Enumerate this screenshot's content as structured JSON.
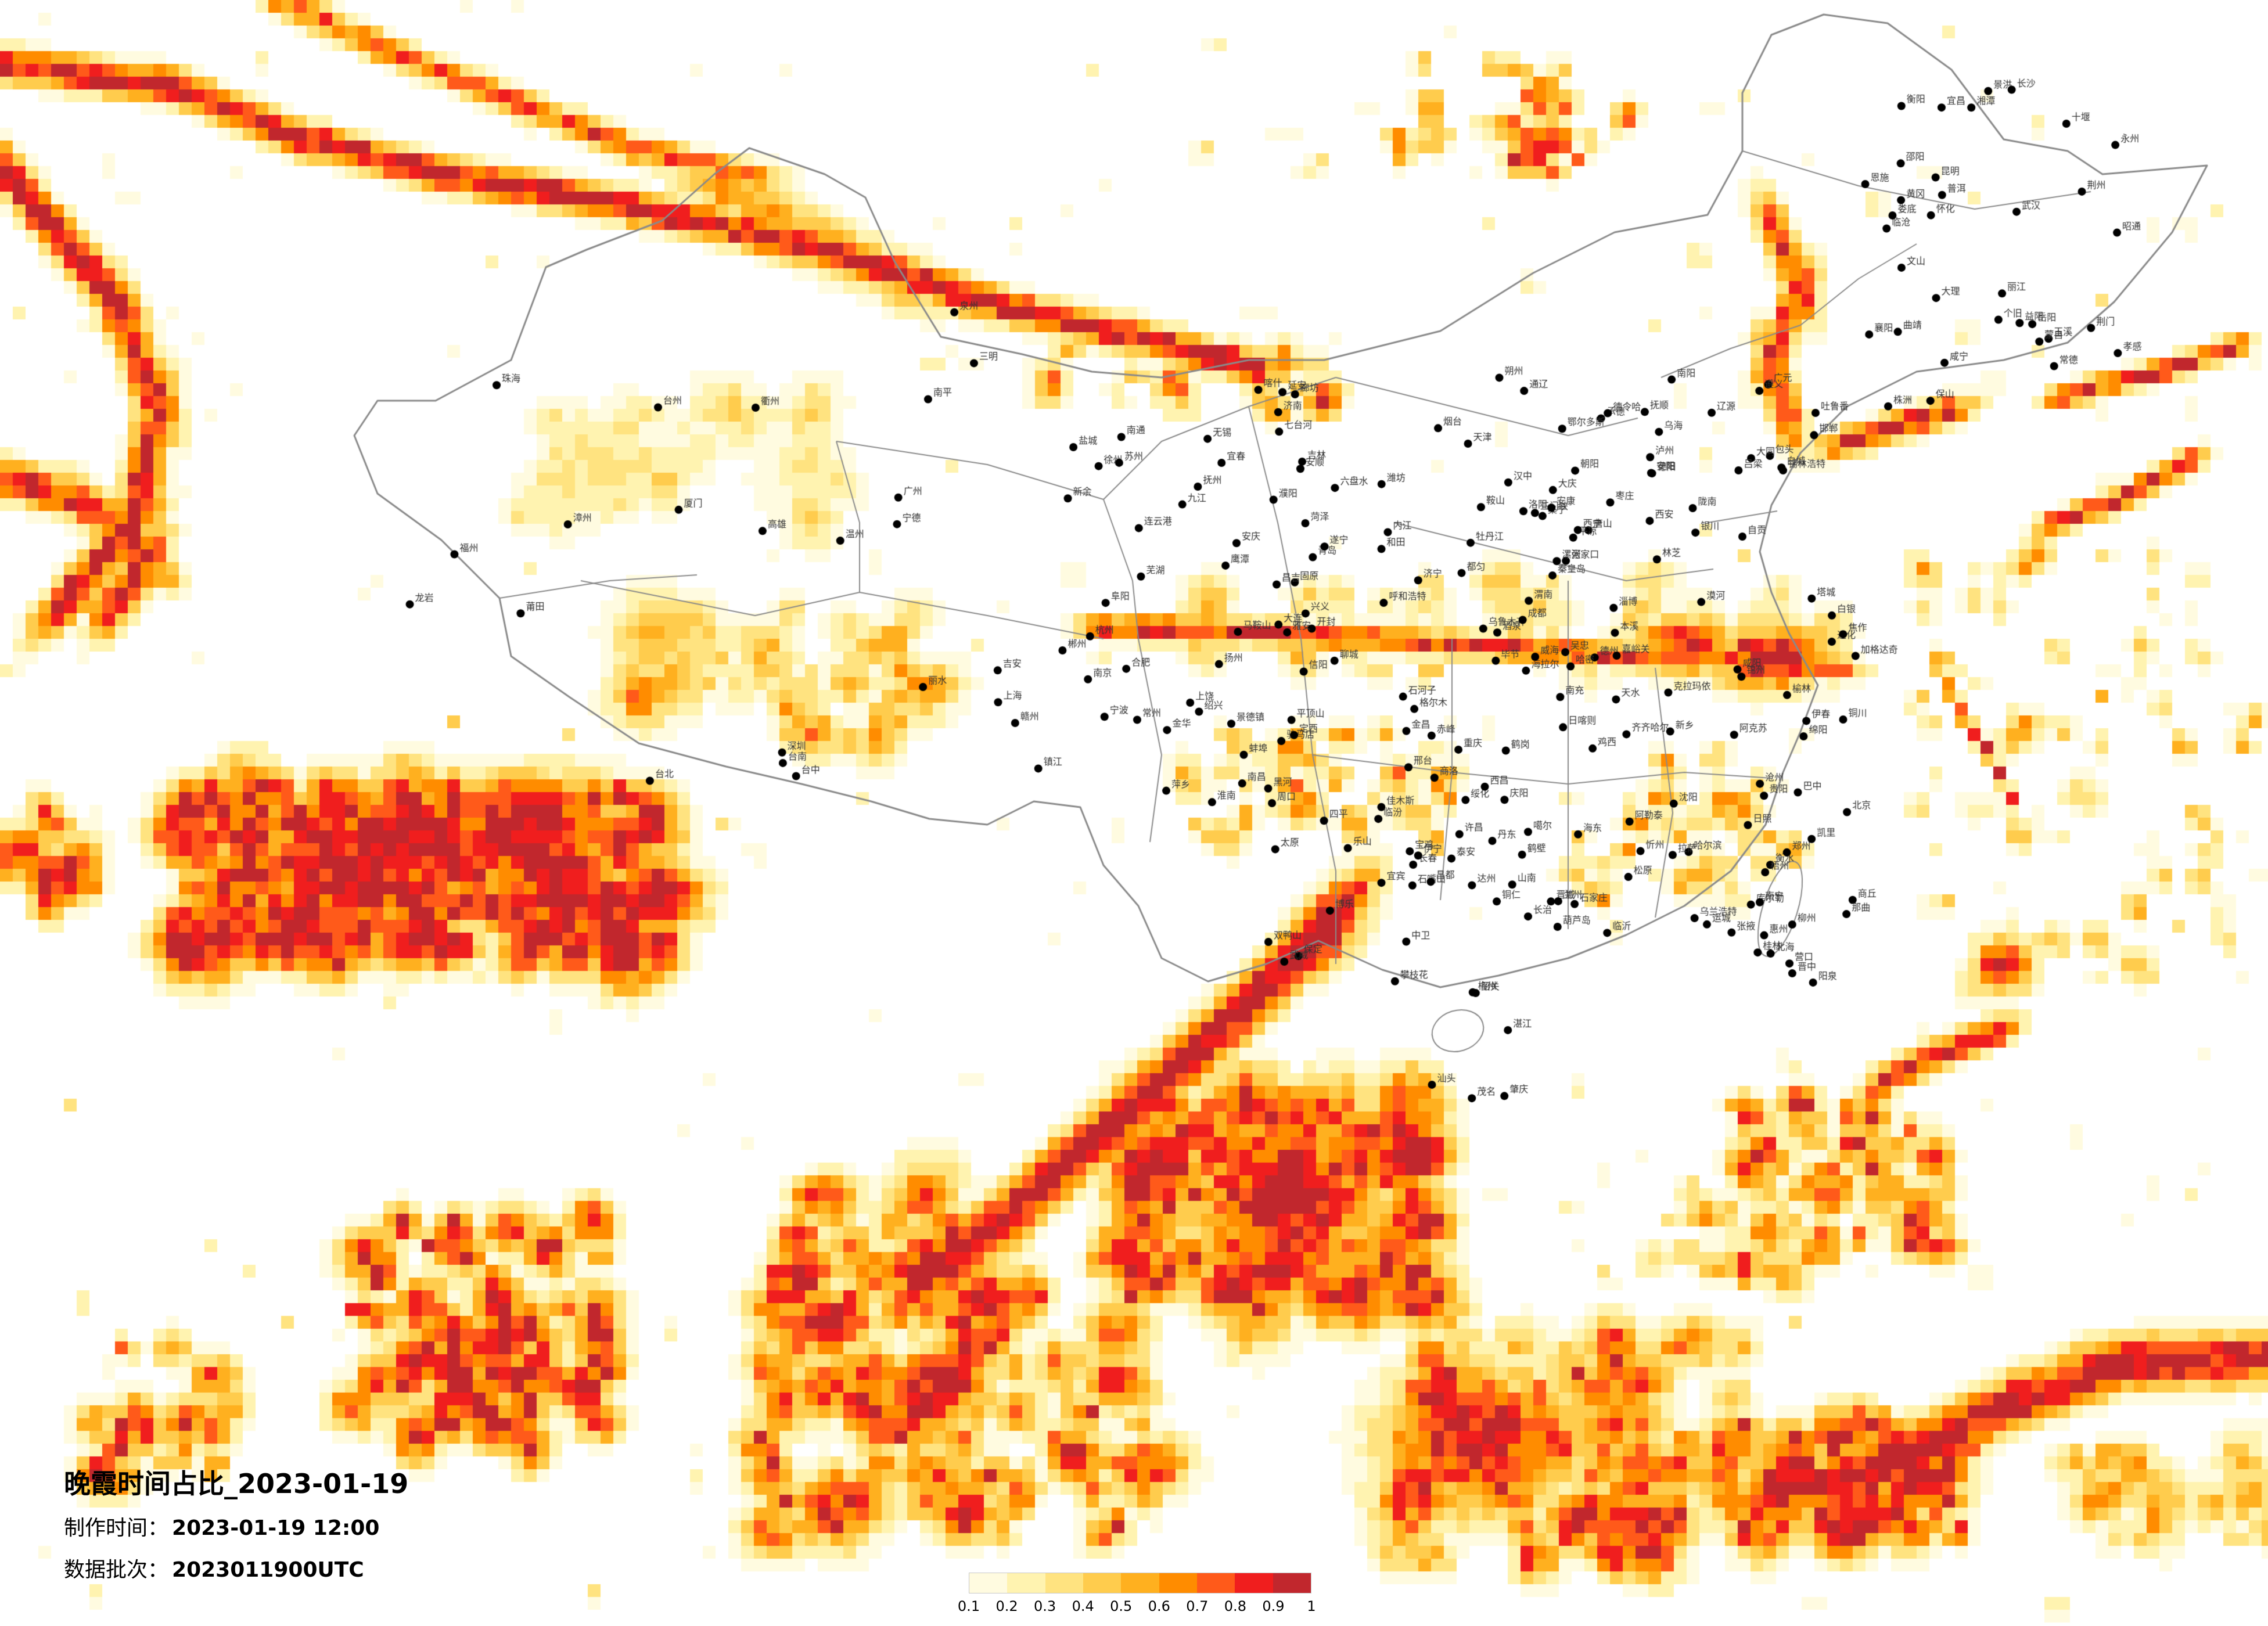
{
  "title": "晚霞时间占比_2023-01-19",
  "meta": {
    "made_label": "制作时间：",
    "made_value": "2023-01-19 12:00",
    "batch_label": "数据批次：",
    "batch_value": "2023011900UTC"
  },
  "legend": {
    "ticks": [
      "0.1",
      "0.2",
      "0.3",
      "0.4",
      "0.5",
      "0.6",
      "0.7",
      "0.8",
      "0.9",
      "1"
    ],
    "colors": [
      "#fffbe0",
      "#fff3b0",
      "#ffe380",
      "#ffcc4d",
      "#ffb01f",
      "#ff8c00",
      "#ff5a1a",
      "#f01e1e",
      "#c1272d"
    ]
  },
  "map": {
    "background": "#ffffff",
    "boundary_color": "#8a8a8a",
    "city_marker_color": "#000000",
    "city_label_color": "#333333"
  },
  "cities": [
    "漠河",
    "加格达奇",
    "黑河",
    "海拉尔",
    "齐齐哈尔",
    "伊春",
    "鹤岗",
    "佳木斯",
    "双鸭山",
    "七台河",
    "绥化",
    "大庆",
    "白城",
    "哈尔滨",
    "鸡西",
    "牡丹江",
    "乌兰浩特",
    "松原",
    "长春",
    "吉林",
    "四平",
    "辽源",
    "通化",
    "锡林浩特",
    "赤峰",
    "通辽",
    "沈阳",
    "抚顺",
    "本溪",
    "丹东",
    "大连",
    "营口",
    "鞍山",
    "锦州",
    "葫芦岛",
    "朝阳",
    "秦皇岛",
    "承德",
    "张家口",
    "北京",
    "天津",
    "唐山",
    "廊坊",
    "保定",
    "石家庄",
    "衡水",
    "沧州",
    "邢台",
    "邯郸",
    "呼和浩特",
    "包头",
    "乌海",
    "鄂尔多斯",
    "集宁",
    "大同",
    "朔州",
    "忻州",
    "太原",
    "阳泉",
    "吕梁",
    "晋中",
    "长治",
    "临汾",
    "运城",
    "晋城",
    "济南",
    "德州",
    "聊城",
    "泰安",
    "淄博",
    "潍坊",
    "烟台",
    "威海",
    "青岛",
    "日照",
    "临沂",
    "济宁",
    "枣庄",
    "菏泽",
    "郑州",
    "开封",
    "商丘",
    "周口",
    "许昌",
    "漯河",
    "平顶山",
    "南阳",
    "信阳",
    "驻马店",
    "洛阳",
    "三门峡",
    "焦作",
    "新乡",
    "安阳",
    "濮阳",
    "鹤壁",
    "西安",
    "宝鸡",
    "咸阳",
    "渭南",
    "铜川",
    "延安",
    "榆林",
    "汉中",
    "安康",
    "商洛",
    "银川",
    "石嘴山",
    "吴忠",
    "固原",
    "中卫",
    "兰州",
    "白银",
    "天水",
    "平凉",
    "庆阳",
    "定西",
    "陇南",
    "武威",
    "金昌",
    "张掖",
    "酒泉",
    "嘉峪关",
    "西宁",
    "海东",
    "格尔木",
    "德令哈",
    "乌鲁木齐",
    "克拉玛依",
    "石河子",
    "昌吉",
    "吐鲁番",
    "哈密",
    "伊宁",
    "博乐",
    "阿克苏",
    "库尔勒",
    "喀什",
    "和田",
    "阿勒泰",
    "塔城",
    "拉萨",
    "日喀则",
    "林芝",
    "山南",
    "那曲",
    "昌都",
    "噶尔",
    "成都",
    "绵阳",
    "德阳",
    "南充",
    "达州",
    "巴中",
    "广元",
    "遂宁",
    "内江",
    "自贡",
    "乐山",
    "宜宾",
    "泸州",
    "雅安",
    "西昌",
    "攀枝花",
    "重庆",
    "贵阳",
    "遵义",
    "六盘水",
    "安顺",
    "都匀",
    "凯里",
    "铜仁",
    "毕节",
    "兴义",
    "昆明",
    "曲靖",
    "玉溪",
    "大理",
    "丽江",
    "保山",
    "临沧",
    "普洱",
    "景洪",
    "蒙自",
    "个旧",
    "文山",
    "昭通",
    "武汉",
    "十堰",
    "襄阳",
    "宜昌",
    "荆州",
    "荆门",
    "孝感",
    "黄冈",
    "咸宁",
    "恩施",
    "长沙",
    "株洲",
    "湘潭",
    "衡阳",
    "岳阳",
    "常德",
    "益阳",
    "娄底",
    "邵阳",
    "怀化",
    "永州",
    "郴州",
    "南昌",
    "九江",
    "景德镇",
    "上饶",
    "鹰潭",
    "抚州",
    "宜春",
    "新余",
    "萍乡",
    "吉安",
    "赣州",
    "合肥",
    "蚌埠",
    "淮南",
    "阜阳",
    "安庆",
    "芜湖",
    "马鞍山",
    "南京",
    "徐州",
    "连云港",
    "盐城",
    "扬州",
    "镇江",
    "常州",
    "无锡",
    "苏州",
    "南通",
    "上海",
    "杭州",
    "宁波",
    "绍兴",
    "金华",
    "衢州",
    "温州",
    "台州",
    "丽水",
    "福州",
    "厦门",
    "泉州",
    "莆田",
    "漳州",
    "龙岩",
    "三明",
    "南平",
    "宁德",
    "台北",
    "台中",
    "台南",
    "高雄",
    "广州",
    "深圳",
    "珠海",
    "汕头",
    "湛江",
    "茂名",
    "肇庆",
    "韶关",
    "梅州",
    "惠州",
    "南宁",
    "柳州",
    "桂林",
    "梧州",
    "北海",
    "玉林",
    "百色",
    "河池",
    "钦州",
    "海口",
    "三亚",
    "儋州"
  ]
}
